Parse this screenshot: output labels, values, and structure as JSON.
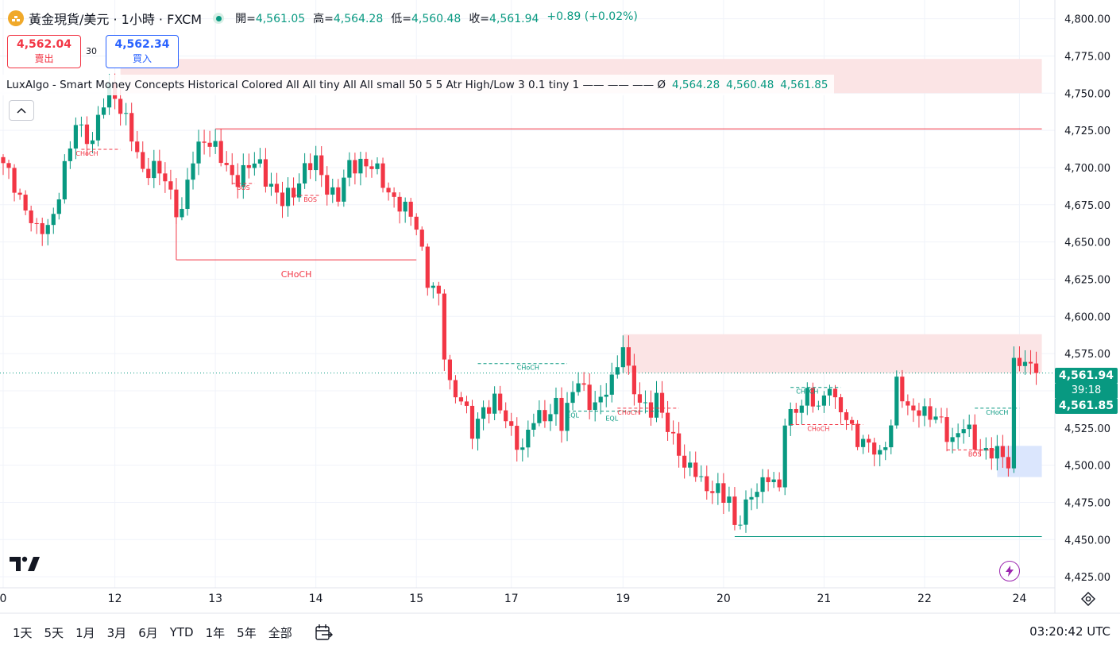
{
  "header": {
    "symbol_title": "黃金現貨/美元 · 1小時 · FXCM",
    "ohlc": [
      {
        "label": "開=",
        "value": "4,561.05"
      },
      {
        "label": "高=",
        "value": "4,564.28"
      },
      {
        "label": "低=",
        "value": "4,560.48"
      },
      {
        "label": "收=",
        "value": "4,561.94"
      }
    ],
    "change": "+0.89 (+0.02%)"
  },
  "trade": {
    "sell_price": "4,562.04",
    "sell_label": "賣出",
    "spread": "30",
    "buy_price": "4,562.34",
    "buy_label": "買入"
  },
  "indicator": {
    "name": "LuxAlgo - Smart Money Concepts Historical Colored All All tiny All All small 50 5 5 Atr High/Low 3 0.1 tiny 1 —— —— ——  Ø",
    "values": [
      "4,564.28",
      "4,560.48",
      "4,561.85"
    ]
  },
  "price_scale": {
    "last_price": "4,561.94",
    "countdown": "39:18",
    "indicator_price": "4,561.85"
  },
  "bottom_bar": {
    "ranges": [
      "1天",
      "5天",
      "1月",
      "3月",
      "6月",
      "YTD",
      "1年",
      "5年",
      "全部"
    ],
    "clock": "03:20:42 UTC"
  },
  "colors": {
    "up": "#089981",
    "down": "#f23645",
    "bearish_zone": "#fbe4e5",
    "bullish_zone": "#dbe6fd",
    "accent": "#2962ff"
  },
  "chart_data": {
    "type": "candlestick",
    "symbol": "XAUUSD",
    "timeframe": "1h",
    "y_range": [
      4416,
      4812
    ],
    "y_ticks": [
      4800,
      4775,
      4750,
      4725,
      4700,
      4675,
      4650,
      4625,
      4600,
      4575,
      4550,
      4525,
      4500,
      4475,
      4450,
      4425
    ],
    "x_ticks": [
      {
        "label": "0",
        "bar": 0
      },
      {
        "label": "12",
        "bar": 20
      },
      {
        "label": "13",
        "bar": 38
      },
      {
        "label": "14",
        "bar": 56
      },
      {
        "label": "15",
        "bar": 74
      },
      {
        "label": "17",
        "bar": 91
      },
      {
        "label": "19",
        "bar": 111
      },
      {
        "label": "20",
        "bar": 129
      },
      {
        "label": "21",
        "bar": 147
      },
      {
        "label": "22",
        "bar": 165
      },
      {
        "label": "24",
        "bar": 182
      }
    ],
    "bar_count": 186,
    "last_price": 4561.94,
    "anchors": [
      [
        0,
        4700
      ],
      [
        2,
        4690
      ],
      [
        4,
        4672
      ],
      [
        6,
        4655
      ],
      [
        9,
        4668
      ],
      [
        12,
        4712
      ],
      [
        13,
        4733
      ],
      [
        16,
        4715
      ],
      [
        18,
        4745
      ],
      [
        19,
        4755
      ],
      [
        20,
        4750
      ],
      [
        21,
        4738
      ],
      [
        23,
        4720
      ],
      [
        25,
        4700
      ],
      [
        27,
        4698
      ],
      [
        29,
        4692
      ],
      [
        31,
        4674
      ],
      [
        32,
        4670
      ],
      [
        34,
        4705
      ],
      [
        36,
        4722
      ],
      [
        38,
        4712
      ],
      [
        40,
        4698
      ],
      [
        42,
        4694
      ],
      [
        44,
        4700
      ],
      [
        46,
        4702
      ],
      [
        48,
        4688
      ],
      [
        50,
        4675
      ],
      [
        52,
        4685
      ],
      [
        54,
        4700
      ],
      [
        56,
        4702
      ],
      [
        58,
        4688
      ],
      [
        60,
        4680
      ],
      [
        62,
        4700
      ],
      [
        64,
        4705
      ],
      [
        66,
        4700
      ],
      [
        68,
        4690
      ],
      [
        70,
        4680
      ],
      [
        72,
        4670
      ],
      [
        74,
        4662
      ],
      [
        75,
        4645
      ],
      [
        76,
        4625
      ],
      [
        78,
        4610
      ],
      [
        79,
        4575
      ],
      [
        80,
        4555
      ],
      [
        82,
        4545
      ],
      [
        84,
        4520
      ],
      [
        86,
        4540
      ],
      [
        88,
        4542
      ],
      [
        90,
        4530
      ],
      [
        92,
        4518
      ],
      [
        93,
        4510
      ],
      [
        95,
        4530
      ],
      [
        97,
        4535
      ],
      [
        99,
        4540
      ],
      [
        100,
        4525
      ],
      [
        102,
        4550
      ],
      [
        103,
        4562
      ],
      [
        105,
        4538
      ],
      [
        107,
        4542
      ],
      [
        108,
        4555
      ],
      [
        110,
        4565
      ],
      [
        111,
        4580
      ],
      [
        112,
        4560
      ],
      [
        114,
        4545
      ],
      [
        116,
        4535
      ],
      [
        117,
        4542
      ],
      [
        119,
        4528
      ],
      [
        121,
        4510
      ],
      [
        122,
        4495
      ],
      [
        124,
        4498
      ],
      [
        126,
        4485
      ],
      [
        128,
        4480
      ],
      [
        129,
        4478
      ],
      [
        130,
        4480
      ],
      [
        131,
        4460
      ],
      [
        133,
        4470
      ],
      [
        135,
        4485
      ],
      [
        137,
        4495
      ],
      [
        139,
        4480
      ],
      [
        140,
        4530
      ],
      [
        142,
        4540
      ],
      [
        144,
        4545
      ],
      [
        146,
        4538
      ],
      [
        148,
        4558
      ],
      [
        149,
        4540
      ],
      [
        151,
        4530
      ],
      [
        153,
        4520
      ],
      [
        155,
        4512
      ],
      [
        157,
        4505
      ],
      [
        159,
        4530
      ],
      [
        160,
        4555
      ],
      [
        162,
        4535
      ],
      [
        164,
        4540
      ],
      [
        166,
        4532
      ],
      [
        168,
        4528
      ],
      [
        170,
        4518
      ],
      [
        172,
        4525
      ],
      [
        174,
        4515
      ],
      [
        176,
        4510
      ],
      [
        178,
        4506
      ],
      [
        179,
        4505
      ],
      [
        180,
        4503
      ],
      [
        181,
        4570
      ],
      [
        182,
        4571
      ],
      [
        183,
        4566
      ],
      [
        184,
        4563
      ],
      [
        185,
        4562
      ]
    ],
    "zones": [
      {
        "type": "bearish",
        "bar_from": 21,
        "bar_to": 186,
        "y_from": 4773,
        "y_to": 4750
      },
      {
        "type": "bearish",
        "bar_from": 111,
        "bar_to": 186,
        "y_from": 4588,
        "y_to": 4562
      },
      {
        "type": "bullish",
        "bar_from": 178,
        "bar_to": 186,
        "y_from": 4513,
        "y_to": 4492
      }
    ],
    "levels": [
      {
        "price": 4726,
        "bar_from": 38,
        "bar_to": 186,
        "color": "down"
      },
      {
        "price": 4452,
        "bar_from": 131,
        "bar_to": 186,
        "color": "up"
      },
      {
        "price": 4638,
        "bar_from": 31,
        "bar_to": 74,
        "color": "down",
        "label": "CHoCH",
        "with_drop": true,
        "drop_from": 4668
      }
    ],
    "structure_labels": [
      {
        "text": "CHoCH",
        "bar": 15,
        "price": 4708,
        "color": "down",
        "line_from": 14,
        "line_to": 21
      },
      {
        "text": "BOS",
        "bar": 55,
        "price": 4677,
        "color": "down",
        "line_from": 52,
        "line_to": 57
      },
      {
        "text": "BOS",
        "bar": 43,
        "price": 4685,
        "color": "down",
        "line_from": 41,
        "line_to": 45
      },
      {
        "text": "CHoCH",
        "bar": 94,
        "price": 4564,
        "color": "up",
        "line_from": 85,
        "line_to": 101
      },
      {
        "text": "EQL",
        "bar": 102,
        "price": 4532,
        "color": "up",
        "line_from": 101,
        "line_to": 118
      },
      {
        "text": "EQL",
        "bar": 109,
        "price": 4530,
        "color": "up"
      },
      {
        "text": "CHoCH",
        "bar": 112,
        "price": 4534,
        "color": "down",
        "line_from": 110,
        "line_to": 121
      },
      {
        "text": "CHoCH",
        "bar": 144,
        "price": 4548,
        "color": "up",
        "line_from": 141,
        "line_to": 150
      },
      {
        "text": "CHoCH",
        "bar": 146,
        "price": 4523,
        "color": "down",
        "line_from": 141,
        "line_to": 154
      },
      {
        "text": "CHoCH",
        "bar": 178,
        "price": 4534,
        "color": "up",
        "line_from": 174,
        "line_to": 182
      },
      {
        "text": "BOS",
        "bar": 174,
        "price": 4506,
        "color": "down",
        "line_from": 169,
        "line_to": 178
      }
    ]
  }
}
